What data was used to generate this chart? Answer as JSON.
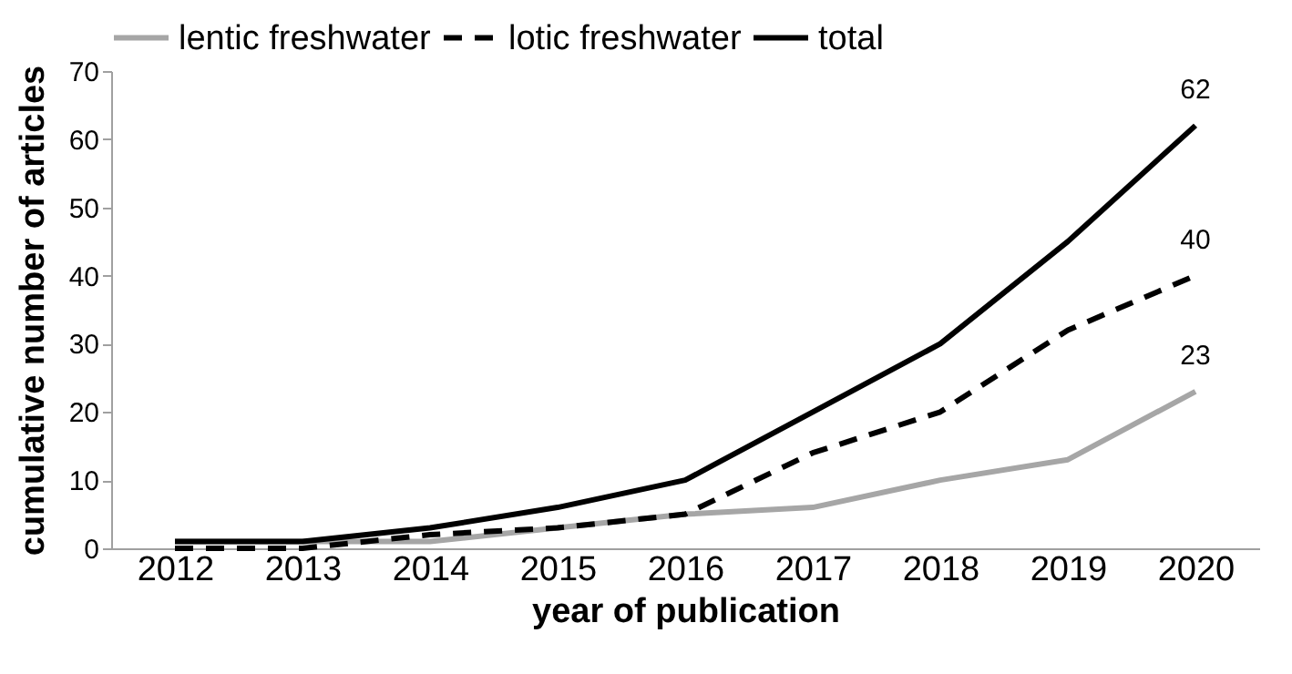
{
  "chart_data": {
    "type": "line",
    "xlabel": "year of publication",
    "ylabel": "cumulative number of articles",
    "categories": [
      "2012",
      "2013",
      "2014",
      "2015",
      "2016",
      "2017",
      "2018",
      "2019",
      "2020"
    ],
    "series": [
      {
        "name": "lentic freshwater",
        "color": "#a6a6a6",
        "line_style": "solid",
        "values": [
          1,
          1,
          1,
          3,
          5,
          6,
          10,
          13,
          23
        ],
        "value_labels": [
          null,
          null,
          null,
          null,
          null,
          null,
          null,
          null,
          "23"
        ]
      },
      {
        "name": "lotic freshwater",
        "color": "#000000",
        "line_style": "dashed",
        "values": [
          0,
          0,
          2,
          3,
          5,
          14,
          20,
          32,
          40
        ],
        "value_labels": [
          null,
          null,
          null,
          null,
          null,
          null,
          null,
          null,
          "40"
        ]
      },
      {
        "name": "total",
        "color": "#000000",
        "line_style": "solid",
        "values": [
          1,
          1,
          3,
          6,
          10,
          20,
          30,
          45,
          62
        ],
        "value_labels": [
          null,
          null,
          null,
          null,
          null,
          null,
          null,
          null,
          "62"
        ]
      }
    ],
    "ylim": [
      0,
      70
    ],
    "yticks": [
      0,
      10,
      20,
      30,
      40,
      50,
      60,
      70
    ],
    "grid": false,
    "legend": "top",
    "marker": "none"
  }
}
